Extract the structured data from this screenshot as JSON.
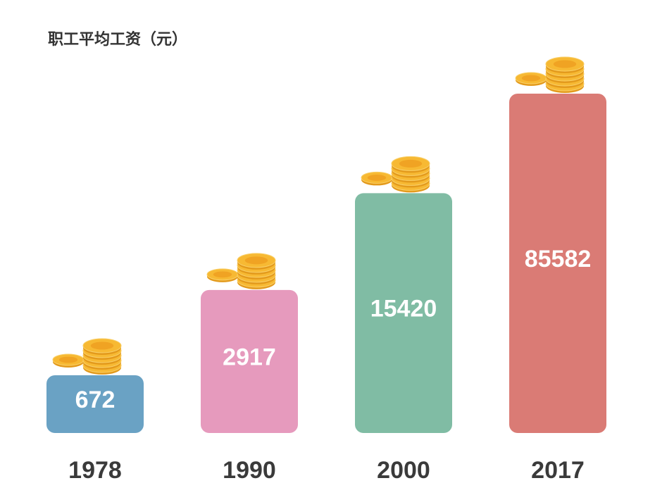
{
  "chart_data": {
    "type": "bar",
    "title": "职工平均工资（元）",
    "categories": [
      "1978",
      "1990",
      "2000",
      "2017"
    ],
    "values": [
      672,
      2917,
      15420,
      85582
    ],
    "colors": [
      "#6aa2c4",
      "#e69abd",
      "#80bca4",
      "#da7b75"
    ],
    "log_scale": true
  }
}
